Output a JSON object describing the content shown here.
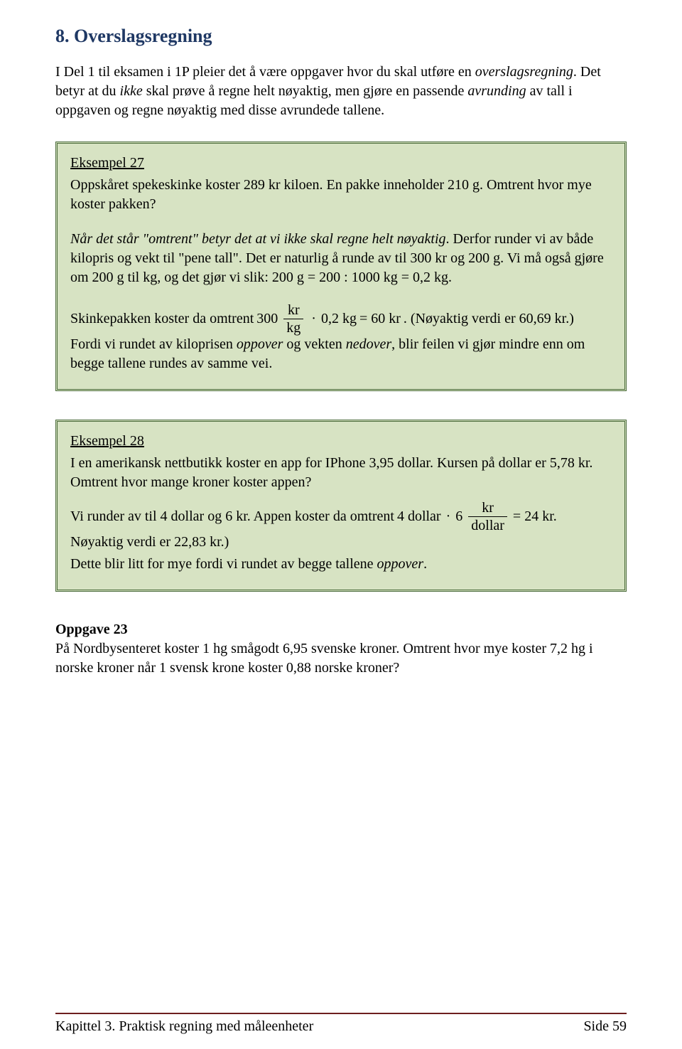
{
  "colors": {
    "heading": "#1f3864",
    "box_bg": "#d7e3c3",
    "box_border": "#4a6b3a",
    "footer_line": "#6d1f1f",
    "text": "#000000",
    "page_bg": "#ffffff"
  },
  "heading": "8. Overslagsregning",
  "intro": {
    "p1_a": "I Del 1 til eksamen i 1P pleier det å være oppgaver hvor du skal utføre en ",
    "p1_i": "overslagsregning",
    "p1_b": ". Det betyr at du ",
    "p1_i2": "ikke",
    "p1_c": " skal prøve å regne helt nøyaktig, men gjøre en passende ",
    "p1_i3": "avrunding",
    "p1_d": " av tall i oppgaven og regne nøyaktig med disse avrundede tallene."
  },
  "ex27": {
    "title": "Eksempel 27",
    "q": "Oppskåret spekeskinke koster 289 kr kiloen. En pakke inneholder 210 g. Omtrent hvor mye koster pakken?",
    "p2_a": "Når det står \"omtrent\" betyr det at vi ikke skal regne helt nøyaktig",
    "p2_b": ". Derfor runder vi av både kilopris og vekt til \"pene tall\". Det er naturlig å runde av til 300 kr og 200 g. Vi må også gjøre om 200 g til kg, og det gjør vi slik:  200 g = 200 : 1000 kg = 0,2 kg.",
    "f": {
      "lead": "Skinkepakken koster da omtrent",
      "a": "300",
      "num": "kr",
      "den": "kg",
      "mdot": "·",
      "b": "0,2 kg",
      "eq": "= 60 kr",
      "note": ". (Nøyaktig verdi er 60,69 kr.)"
    },
    "p3_a": "Fordi vi rundet av kiloprisen ",
    "p3_i1": "oppover",
    "p3_b": " og vekten ",
    "p3_i2": "nedover",
    "p3_c": ", blir feilen vi gjør mindre enn om begge tallene rundes av samme vei."
  },
  "ex28": {
    "title": "Eksempel 28",
    "q": "I en amerikansk nettbutikk koster en app for IPhone 3,95 dollar. Kursen på dollar er 5,78 kr. Omtrent hvor mange kroner koster appen?",
    "f": {
      "lead": "Vi runder av til 4 dollar og 6 kr. Appen koster da omtrent",
      "a": "4 dollar",
      "mdot": "·",
      "b": "6",
      "num": "kr",
      "den": "dollar",
      "eq": "= 24 kr."
    },
    "note": "Nøyaktig verdi er 22,83 kr.)",
    "p3_a": "Dette blir litt for mye fordi vi rundet av begge tallene ",
    "p3_i": "oppover",
    "p3_b": "."
  },
  "task23": {
    "title": "Oppgave 23",
    "q": "På Nordbysenteret koster 1 hg smågodt 6,95 svenske kroner. Omtrent hvor mye koster 7,2 hg i norske kroner når 1 svensk krone koster 0,88 norske kroner?"
  },
  "footer": {
    "left": "Kapittel 3. Praktisk regning med måleenheter",
    "right": "Side 59"
  }
}
